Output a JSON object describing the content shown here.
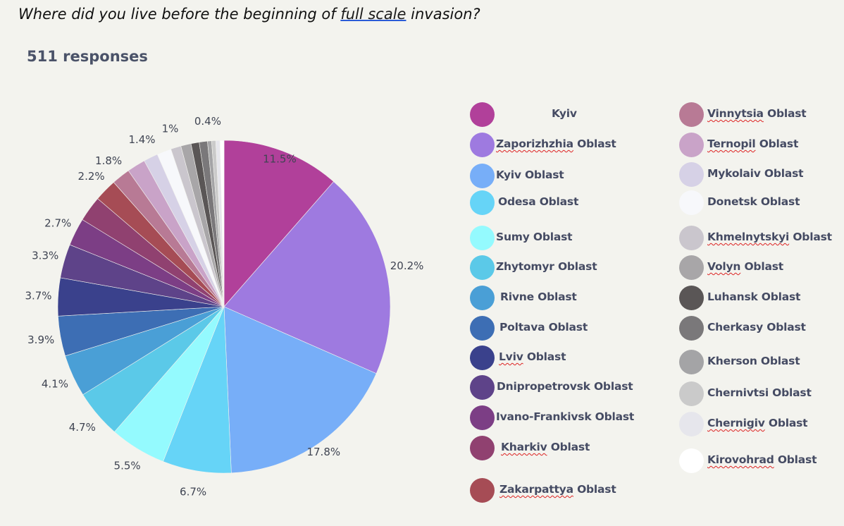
{
  "question": {
    "before": "Where did you live before the beginning of ",
    "highlight": "full scale",
    "after": " invasion?"
  },
  "responses_label": "511 responses",
  "chart_data": {
    "type": "pie",
    "categories": [
      "Kyiv",
      "Zaporizhzhia Oblast",
      "Kyiv Oblast",
      "Odesa Oblast",
      "Sumy Oblast",
      "Zhytomyr Oblast",
      "Rivne Oblast",
      "Poltava Oblast",
      "Lviv Oblast",
      "Dnipropetrovsk Oblast",
      "Ivano-Frankivsk  Oblast",
      "Kharkiv Oblast",
      "Zakarpattya Oblast",
      "Vinnytsia Oblast",
      "Ternopil  Oblast",
      "Mykolaiv Oblast",
      "Donetsk Oblast",
      "Khmelnytskyi Oblast",
      "Volyn Oblast",
      "Luhansk Oblast",
      "Cherkasy Oblast",
      "Kherson Oblast",
      "Chernivtsi Oblast",
      "Chernigiv Oblast",
      "Kirovohrad Oblast"
    ],
    "values": [
      11.5,
      20.2,
      17.8,
      6.7,
      5.5,
      4.7,
      4.1,
      3.9,
      3.7,
      3.3,
      2.7,
      2.5,
      2.2,
      1.8,
      1.8,
      1.4,
      1.4,
      1.0,
      1.0,
      0.8,
      0.8,
      0.4,
      0.4,
      0.4,
      0.4
    ],
    "colors": [
      "#b1409a",
      "#9e7ae0",
      "#77aef8",
      "#66d4f7",
      "#94fafe",
      "#5bc9e8",
      "#4a9fd6",
      "#3d6eb4",
      "#3a418c",
      "#5e4389",
      "#7c3e85",
      "#904170",
      "#a64c55",
      "#b87a95",
      "#c9a3c8",
      "#d6d1e6",
      "#f7f8fb",
      "#cac6cd",
      "#a8a6a8",
      "#5a5656",
      "#7a787a",
      "#a4a4a6",
      "#cacaca",
      "#e6e6ec",
      "#ffffff"
    ],
    "slice_labels": [
      "11.5%",
      "20.2%",
      "17.8%",
      "6.7%",
      "5.5%",
      "4.7%",
      "4.1%",
      "3.9%",
      "3.7%",
      "3.3%",
      "2.7%",
      "",
      "2.2%",
      "1.8%",
      "",
      "1.4%",
      "",
      "1%",
      "",
      "",
      "",
      "0.4%",
      "",
      "",
      ""
    ],
    "legend_labels": [
      "Kyiv",
      "Zaporizhzhia Oblast",
      "Kyiv Oblast",
      "Odesa Oblast",
      "Sumy Oblast",
      "Zhytomyr Oblast",
      "Rivne Oblast",
      "Poltava Oblast",
      "Lviv Oblast",
      "Dnipropetrovsk Oblast",
      "Ivano-Frankivsk  Oblast",
      "Kharkiv Oblast",
      "Zakarpattya Oblast",
      "Vinnytsia Oblast",
      "Ternopil  Oblast",
      "Mykolaiv Oblast",
      "Donetsk Oblast",
      "Khmelnytskyi Oblast",
      "Volyn Oblast",
      "Luhansk Oblast",
      "Cherkasy Oblast",
      "Kherson Oblast",
      "Chernivtsi Oblast",
      "Chernigiv Oblast",
      "Kirovohrad Oblast"
    ],
    "legend_placement": "right"
  }
}
